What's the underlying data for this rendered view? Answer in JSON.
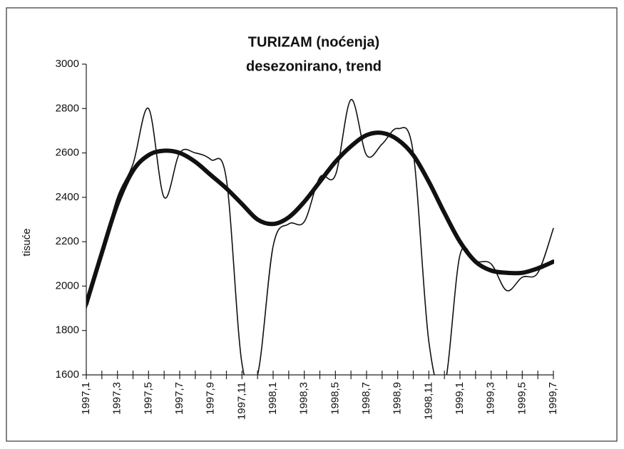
{
  "chart_data": {
    "type": "line",
    "title": "TURIZAM  (noćenja)",
    "subtitle": "desezonirano, trend",
    "y_label": "tisuće",
    "categories": [
      "1997,1",
      null,
      "1997,3",
      null,
      "1997,5",
      null,
      "1997,7",
      null,
      "1997,9",
      null,
      "1997,11",
      null,
      "1998,1",
      null,
      "1998,3",
      null,
      "1998,5",
      null,
      "1998,7",
      null,
      "1998,9",
      null,
      "1998,11",
      null,
      "1999,1",
      null,
      "1999,3",
      null,
      "1999,5",
      null,
      "1999,7"
    ],
    "series": [
      {
        "color": "#111111",
        "width": 1.6,
        "values": [
          1900,
          2150,
          2400,
          2550,
          2800,
          2400,
          2600,
          2600,
          2570,
          2480,
          1650,
          1600,
          2180,
          2280,
          2290,
          2490,
          2500,
          2840,
          2590,
          2640,
          2710,
          2600,
          1750,
          1550,
          2140,
          2110,
          2100,
          1980,
          2040,
          2060,
          2260
        ]
      },
      {
        "color": "#111111",
        "width": 6,
        "values": [
          1920,
          2150,
          2370,
          2520,
          2590,
          2610,
          2600,
          2560,
          2500,
          2440,
          2370,
          2300,
          2280,
          2310,
          2380,
          2470,
          2560,
          2630,
          2680,
          2690,
          2660,
          2590,
          2470,
          2330,
          2200,
          2110,
          2070,
          2060,
          2060,
          2080,
          2110
        ]
      }
    ],
    "ylim": [
      1600,
      3000
    ],
    "yticks": [
      1600,
      1800,
      2000,
      2200,
      2400,
      2600,
      2800,
      3000
    ]
  }
}
